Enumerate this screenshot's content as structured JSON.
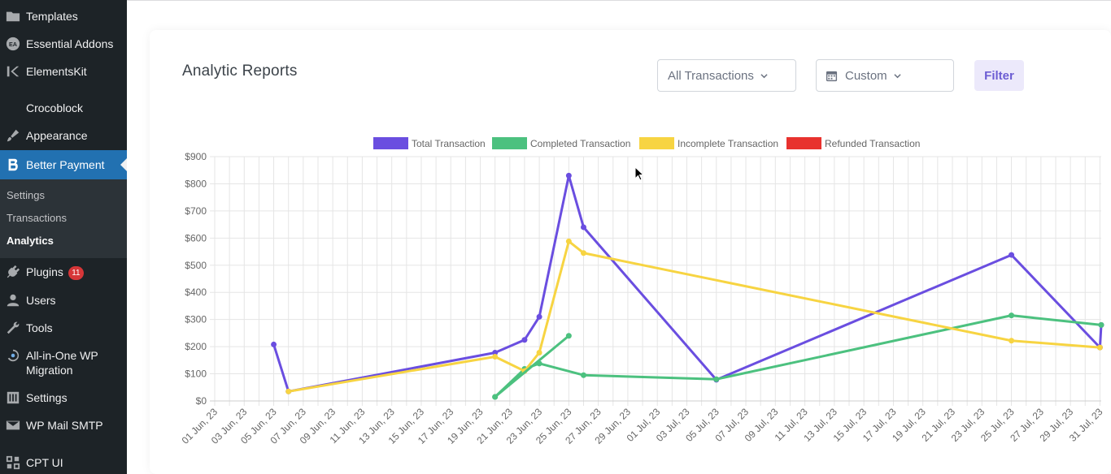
{
  "sidebar": {
    "items": [
      {
        "label": "Templates",
        "icon": "folder-icon"
      },
      {
        "label": "Essential Addons",
        "icon": "ea-icon"
      },
      {
        "label": "ElementsKit",
        "icon": "elementskit-icon"
      },
      {
        "label": "Crocoblock",
        "icon": "crocoblock-icon"
      },
      {
        "label": "Appearance",
        "icon": "paintbrush-icon"
      },
      {
        "label": "Better Payment",
        "icon": "better-payment-icon"
      },
      {
        "label": "Plugins",
        "icon": "plug-icon",
        "badge": "11"
      },
      {
        "label": "Users",
        "icon": "user-icon"
      },
      {
        "label": "Tools",
        "icon": "wrench-icon"
      },
      {
        "label": "All-in-One WP",
        "label2": "Migration",
        "icon": "migration-icon"
      },
      {
        "label": "Settings",
        "icon": "settings-icon"
      },
      {
        "label": "WP Mail SMTP",
        "icon": "mail-icon"
      },
      {
        "label": "CPT UI",
        "icon": "cpt-icon"
      }
    ],
    "submenu": [
      "Settings",
      "Transactions",
      "Analytics"
    ]
  },
  "header": {
    "title": "Analytic Reports",
    "transactions_select": "All Transactions",
    "date_select": "Custom",
    "filter_label": "Filter"
  },
  "colors": {
    "total": "#6a4ee0",
    "completed": "#4cc17f",
    "incomplete": "#f7d442",
    "refunded": "#e8322e",
    "accent": "#2271b1"
  },
  "chart_data": {
    "type": "line",
    "title": "",
    "xlabel": "",
    "ylabel": "",
    "ylim": [
      0,
      900
    ],
    "yticks": [
      0,
      100,
      200,
      300,
      400,
      500,
      600,
      700,
      800,
      900
    ],
    "ytick_labels": [
      "$0",
      "$100",
      "$200",
      "$300",
      "$400",
      "$500",
      "$600",
      "$700",
      "$800",
      "$900"
    ],
    "x_days": 60,
    "x_start": "01 Jun, 23",
    "xtick_labels": [
      "01 Jun, 23",
      "03 Jun, 23",
      "05 Jun, 23",
      "07 Jun, 23",
      "09 Jun, 23",
      "11 Jun, 23",
      "13 Jun, 23",
      "15 Jun, 23",
      "17 Jun, 23",
      "19 Jun, 23",
      "21 Jun, 23",
      "23 Jun, 23",
      "25 Jun, 23",
      "27 Jun, 23",
      "29 Jun, 23",
      "01 Jul, 23",
      "03 Jul, 23",
      "05 Jul, 23",
      "07 Jul, 23",
      "09 Jul, 23",
      "11 Jul, 23",
      "13 Jul, 23",
      "15 Jul, 23",
      "17 Jul, 23",
      "19 Jul, 23",
      "21 Jul, 23",
      "23 Jul, 23",
      "25 Jul, 23",
      "27 Jul, 23",
      "29 Jul, 23",
      "31 Jul, 23"
    ],
    "legend": [
      "Total Transaction",
      "Completed Transaction",
      "Incomplete Transaction",
      "Refunded Transaction"
    ],
    "series": [
      {
        "name": "Total Transaction",
        "color_key": "total",
        "points": [
          [
            5,
            208
          ],
          [
            6,
            35
          ],
          [
            20,
            178
          ],
          [
            22,
            225
          ],
          [
            23,
            310
          ],
          [
            25,
            830
          ],
          [
            26,
            640
          ],
          [
            35,
            78
          ],
          [
            55,
            538
          ],
          [
            61,
            197
          ],
          [
            62,
            280
          ]
        ]
      },
      {
        "name": "Completed Transaction",
        "color_key": "completed",
        "points": [
          [
            20,
            15
          ],
          [
            22,
            118
          ],
          [
            23,
            138
          ],
          [
            26,
            95
          ],
          [
            35,
            80
          ],
          [
            55,
            315
          ],
          [
            62,
            280
          ]
        ]
      },
      {
        "name": "Incomplete Transaction",
        "color_key": "incomplete",
        "points": [
          [
            6,
            35
          ],
          [
            20,
            163
          ],
          [
            22,
            110
          ],
          [
            23,
            178
          ],
          [
            25,
            588
          ],
          [
            26,
            545
          ],
          [
            55,
            222
          ],
          [
            61,
            197
          ]
        ]
      },
      {
        "name": "Completed Transaction",
        "color_key": "completed",
        "points": [
          [
            20,
            15
          ],
          [
            25,
            240
          ]
        ]
      },
      {
        "name": "Refunded Transaction",
        "color_key": "refunded",
        "points": []
      }
    ]
  }
}
